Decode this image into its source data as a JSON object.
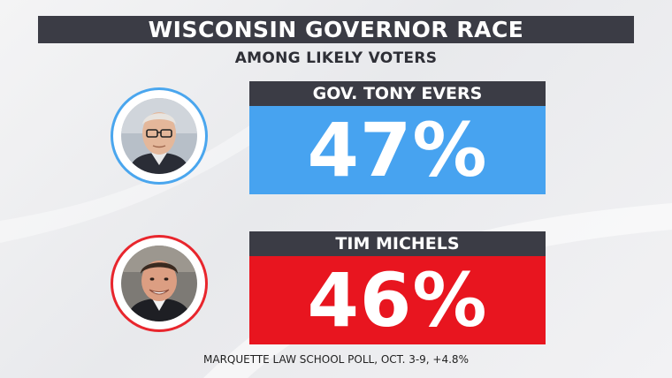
{
  "header": {
    "title": "WISCONSIN GOVERNOR RACE",
    "subtitle": "AMONG LIKELY VOTERS"
  },
  "candidates": [
    {
      "name": "GOV. TONY EVERS",
      "pct_label": "47%",
      "color": "#47a3f0"
    },
    {
      "name": "TIM MICHELS",
      "pct_label": "46%",
      "color": "#e8151f"
    }
  ],
  "footer": {
    "source": "MARQUETTE LAW SCHOOL POLL, OCT. 3-9, +4.8%"
  },
  "chart_data": {
    "type": "table",
    "title": "WISCONSIN GOVERNOR RACE",
    "subtitle": "AMONG LIKELY VOTERS",
    "categories": [
      "GOV. TONY EVERS",
      "TIM MICHELS"
    ],
    "values": [
      47,
      46
    ],
    "unit": "%",
    "colors": [
      "#47a3f0",
      "#e8151f"
    ]
  }
}
